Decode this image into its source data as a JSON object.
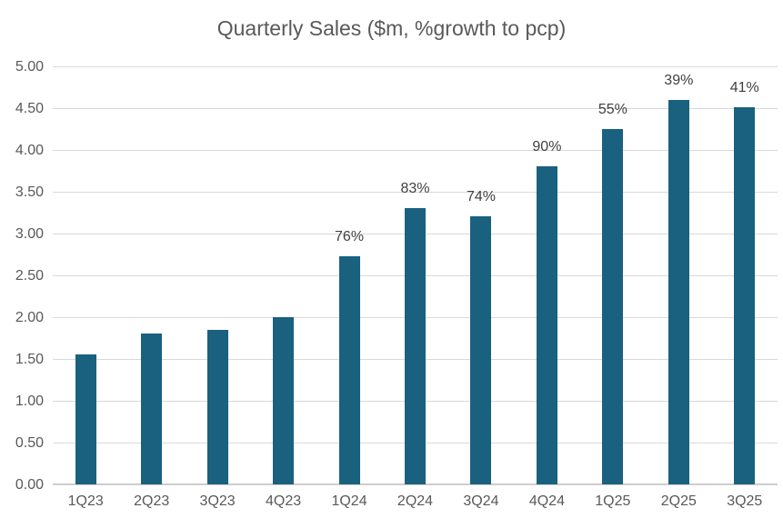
{
  "chart_data": {
    "type": "bar",
    "title": "Quarterly Sales ($m, %growth to pcp)",
    "categories": [
      "1Q23",
      "2Q23",
      "3Q23",
      "4Q23",
      "1Q24",
      "2Q24",
      "3Q24",
      "4Q24",
      "1Q25",
      "2Q25",
      "3Q25"
    ],
    "series": [
      {
        "name": "Quarterly Sales ($m)",
        "values": [
          1.55,
          1.8,
          1.85,
          2.0,
          2.73,
          3.3,
          3.21,
          3.8,
          4.25,
          4.6,
          4.51
        ]
      }
    ],
    "bar_labels": [
      "",
      "",
      "",
      "",
      "76%",
      "83%",
      "74%",
      "90%",
      "55%",
      "39%",
      "41%"
    ],
    "xlabel": "",
    "ylabel": "",
    "ylim": [
      0,
      5
    ],
    "ytick_step": 0.5,
    "ytick_labels": [
      "0.00",
      "0.50",
      "1.00",
      "1.50",
      "2.00",
      "2.50",
      "3.00",
      "3.50",
      "4.00",
      "4.50",
      "5.00"
    ],
    "grid": true,
    "legend": false,
    "colors": {
      "bar": "#19617f",
      "title_text": "#595959",
      "axis_text": "#595959",
      "data_label_text": "#404040",
      "gridline": "#d9d9d9",
      "axis_line": "#cfcdcd",
      "background": "#ffffff"
    }
  }
}
